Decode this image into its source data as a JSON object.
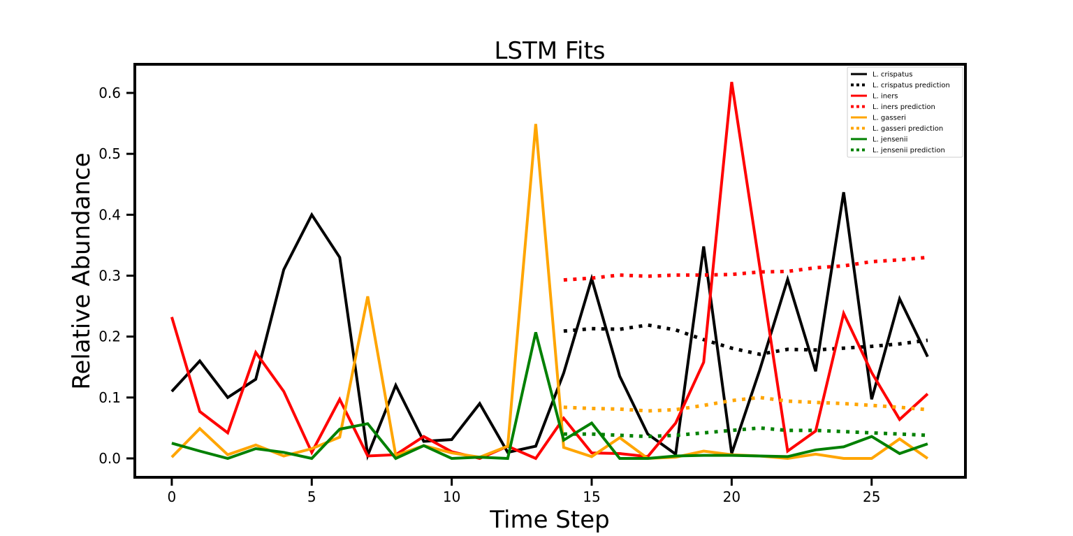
{
  "chart_data": {
    "type": "line",
    "title": "LSTM Fits",
    "xlabel": "Time Step",
    "ylabel": "Relative Abundance",
    "xlim": [
      -1.32,
      28.35
    ],
    "ylim": [
      -0.031,
      0.647
    ],
    "xticks": [
      0,
      5,
      10,
      15,
      20,
      25
    ],
    "xtick_labels": [
      "0",
      "5",
      "10",
      "15",
      "20",
      "25"
    ],
    "yticks": [
      0.0,
      0.1,
      0.2,
      0.3,
      0.4,
      0.5,
      0.6
    ],
    "ytick_labels": [
      "0.0",
      "0.1",
      "0.2",
      "0.3",
      "0.4",
      "0.5",
      "0.6"
    ],
    "grid": false,
    "legend_position": "top-right",
    "series": [
      {
        "name": "L. crispatus",
        "color": "#000000",
        "style": "solid",
        "x": [
          0,
          1,
          2,
          3,
          4,
          5,
          6,
          7,
          8,
          9,
          10,
          11,
          12,
          13,
          14,
          15,
          16,
          17,
          18,
          19,
          20,
          21,
          22,
          23,
          24,
          25,
          26,
          27
        ],
        "values": [
          0.11,
          0.16,
          0.1,
          0.13,
          0.31,
          0.4,
          0.33,
          0.005,
          0.12,
          0.028,
          0.031,
          0.09,
          0.01,
          0.02,
          0.14,
          0.295,
          0.135,
          0.04,
          0.007,
          0.348,
          0.008,
          0.145,
          0.294,
          0.143,
          0.437,
          0.097,
          0.262,
          0.167
        ]
      },
      {
        "name": "L. crispatus prediction",
        "color": "#000000",
        "style": "dotted",
        "x": [
          14,
          15,
          16,
          17,
          18,
          19,
          20,
          21,
          22,
          23,
          24,
          25,
          26,
          27
        ],
        "values": [
          0.209,
          0.213,
          0.212,
          0.219,
          0.211,
          0.195,
          0.181,
          0.171,
          0.179,
          0.178,
          0.181,
          0.184,
          0.188,
          0.194
        ]
      },
      {
        "name": "L. iners",
        "color": "#ff0000",
        "style": "solid",
        "x": [
          0,
          1,
          2,
          3,
          4,
          5,
          6,
          7,
          8,
          9,
          10,
          11,
          12,
          13,
          14,
          15,
          16,
          17,
          18,
          19,
          20,
          21,
          22,
          23,
          24,
          25,
          26,
          27
        ],
        "values": [
          0.232,
          0.077,
          0.042,
          0.174,
          0.11,
          0.01,
          0.097,
          0.004,
          0.006,
          0.036,
          0.011,
          0.0,
          0.02,
          0.0,
          0.066,
          0.009,
          0.008,
          0.003,
          0.058,
          0.158,
          0.618,
          0.315,
          0.012,
          0.045,
          0.238,
          0.141,
          0.064,
          0.106
        ]
      },
      {
        "name": "L. iners prediction",
        "color": "#ff0000",
        "style": "dotted",
        "x": [
          14,
          15,
          16,
          17,
          18,
          19,
          20,
          21,
          22,
          23,
          24,
          25,
          26,
          27
        ],
        "values": [
          0.293,
          0.296,
          0.301,
          0.299,
          0.301,
          0.301,
          0.302,
          0.306,
          0.307,
          0.313,
          0.316,
          0.323,
          0.326,
          0.33
        ]
      },
      {
        "name": "L. gasseri",
        "color": "#ffa500",
        "style": "solid",
        "x": [
          0,
          1,
          2,
          3,
          4,
          5,
          6,
          7,
          8,
          9,
          10,
          11,
          12,
          13,
          14,
          15,
          16,
          17,
          18,
          19,
          20,
          21,
          22,
          23,
          24,
          25,
          26,
          27
        ],
        "values": [
          0.002,
          0.049,
          0.006,
          0.022,
          0.004,
          0.016,
          0.035,
          0.266,
          0.005,
          0.021,
          0.009,
          0.002,
          0.02,
          0.549,
          0.018,
          0.003,
          0.034,
          0.0,
          0.002,
          0.012,
          0.006,
          0.004,
          0.0,
          0.007,
          0.0,
          0.0,
          0.032,
          0.0
        ]
      },
      {
        "name": "L. gasseri prediction",
        "color": "#ffa500",
        "style": "dotted",
        "x": [
          14,
          15,
          16,
          17,
          18,
          19,
          20,
          21,
          22,
          23,
          24,
          25,
          26,
          27
        ],
        "values": [
          0.084,
          0.082,
          0.081,
          0.078,
          0.08,
          0.087,
          0.095,
          0.1,
          0.094,
          0.092,
          0.09,
          0.087,
          0.084,
          0.08
        ]
      },
      {
        "name": "L. jensenii",
        "color": "#008000",
        "style": "solid",
        "x": [
          0,
          1,
          2,
          3,
          4,
          5,
          6,
          7,
          8,
          9,
          10,
          11,
          12,
          13,
          14,
          15,
          16,
          17,
          18,
          19,
          20,
          21,
          22,
          23,
          24,
          25,
          26,
          27
        ],
        "values": [
          0.025,
          0.012,
          0.0,
          0.016,
          0.01,
          0.0,
          0.048,
          0.057,
          0.0,
          0.021,
          0.0,
          0.002,
          0.0,
          0.207,
          0.03,
          0.058,
          0.0,
          0.0,
          0.004,
          0.005,
          0.005,
          0.004,
          0.003,
          0.014,
          0.019,
          0.036,
          0.008,
          0.024
        ]
      },
      {
        "name": "L. jensenii prediction",
        "color": "#008000",
        "style": "dotted",
        "x": [
          14,
          15,
          16,
          17,
          18,
          19,
          20,
          21,
          22,
          23,
          24,
          25,
          26,
          27
        ],
        "values": [
          0.04,
          0.04,
          0.038,
          0.036,
          0.038,
          0.042,
          0.046,
          0.05,
          0.046,
          0.046,
          0.044,
          0.042,
          0.04,
          0.038
        ]
      }
    ]
  }
}
